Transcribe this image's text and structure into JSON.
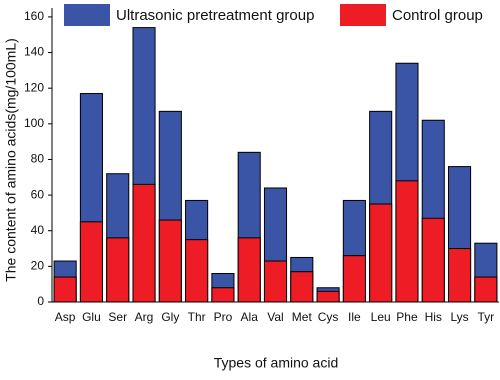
{
  "chart_data": {
    "type": "bar",
    "xlabel": "Types of amino acid",
    "ylabel": "The content of amino acids(mg/100mL)",
    "categories": [
      "Asp",
      "Glu",
      "Ser",
      "Arg",
      "Gly",
      "Thr",
      "Pro",
      "Ala",
      "Val",
      "Met",
      "Cys",
      "Ile",
      "Leu",
      "Phe",
      "His",
      "Lys",
      "Tyr"
    ],
    "series": [
      {
        "name": "Ultrasonic pretreatment group",
        "color": "#3b55a6",
        "values": [
          23,
          117,
          72,
          154,
          107,
          57,
          16,
          84,
          64,
          25,
          8,
          57,
          107,
          134,
          102,
          76,
          33
        ]
      },
      {
        "name": "Control group",
        "color": "#ee1c25",
        "values": [
          14,
          45,
          36,
          66,
          46,
          35,
          8,
          36,
          23,
          17,
          6,
          26,
          55,
          68,
          47,
          30,
          14
        ]
      }
    ],
    "ylim": [
      0,
      165
    ],
    "yticks": [
      0,
      20,
      40,
      60,
      80,
      100,
      120,
      140,
      160
    ]
  }
}
